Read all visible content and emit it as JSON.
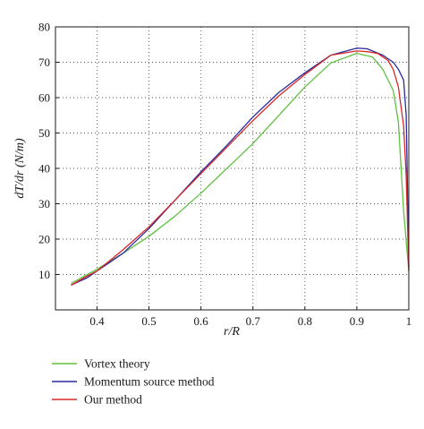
{
  "chart_data": {
    "type": "line",
    "xlabel": "r/R",
    "ylabel": "dT/dr (N/m)",
    "xlim": [
      0.32,
      1.0
    ],
    "ylim": [
      0,
      80
    ],
    "xticks": [
      0.4,
      0.5,
      0.6,
      0.7,
      0.8,
      0.9,
      1
    ],
    "yticks": [
      10,
      20,
      30,
      40,
      50,
      60,
      70,
      80
    ],
    "grid": "dotted",
    "legend_position": "below",
    "series": [
      {
        "name": "Vortex theory",
        "color": "#5fc041",
        "x": [
          0.35,
          0.4,
          0.45,
          0.5,
          0.55,
          0.6,
          0.65,
          0.7,
          0.75,
          0.8,
          0.85,
          0.9,
          0.93,
          0.95,
          0.97,
          0.98,
          0.99,
          1.0
        ],
        "y": [
          7.5,
          11.5,
          16.0,
          20.8,
          26.5,
          33.0,
          40.0,
          47.0,
          55.0,
          63.0,
          69.8,
          72.5,
          71.5,
          68.0,
          62.0,
          53.0,
          28.0,
          11.0
        ]
      },
      {
        "name": "Momentum source method",
        "color": "#2b2b9e",
        "x": [
          0.35,
          0.38,
          0.4,
          0.45,
          0.5,
          0.55,
          0.6,
          0.65,
          0.7,
          0.75,
          0.8,
          0.85,
          0.9,
          0.92,
          0.95,
          0.97,
          0.98,
          0.99,
          0.995,
          1.0
        ],
        "y": [
          7.0,
          9.0,
          11.0,
          16.0,
          23.0,
          31.0,
          39.0,
          46.5,
          54.5,
          61.5,
          67.0,
          72.0,
          74.0,
          73.8,
          72.0,
          70.0,
          68.0,
          65.0,
          55.0,
          12.0
        ]
      },
      {
        "name": "Our method",
        "color": "#d62828",
        "x": [
          0.35,
          0.38,
          0.4,
          0.45,
          0.5,
          0.55,
          0.6,
          0.65,
          0.7,
          0.75,
          0.8,
          0.85,
          0.9,
          0.92,
          0.94,
          0.96,
          0.97,
          0.98,
          0.99,
          0.995,
          1.0
        ],
        "y": [
          7.0,
          9.5,
          11.0,
          17.0,
          23.5,
          31.0,
          38.5,
          46.0,
          53.5,
          60.5,
          66.5,
          72.0,
          73.2,
          73.0,
          72.5,
          70.5,
          68.0,
          63.0,
          52.0,
          38.0,
          11.0
        ]
      }
    ]
  }
}
